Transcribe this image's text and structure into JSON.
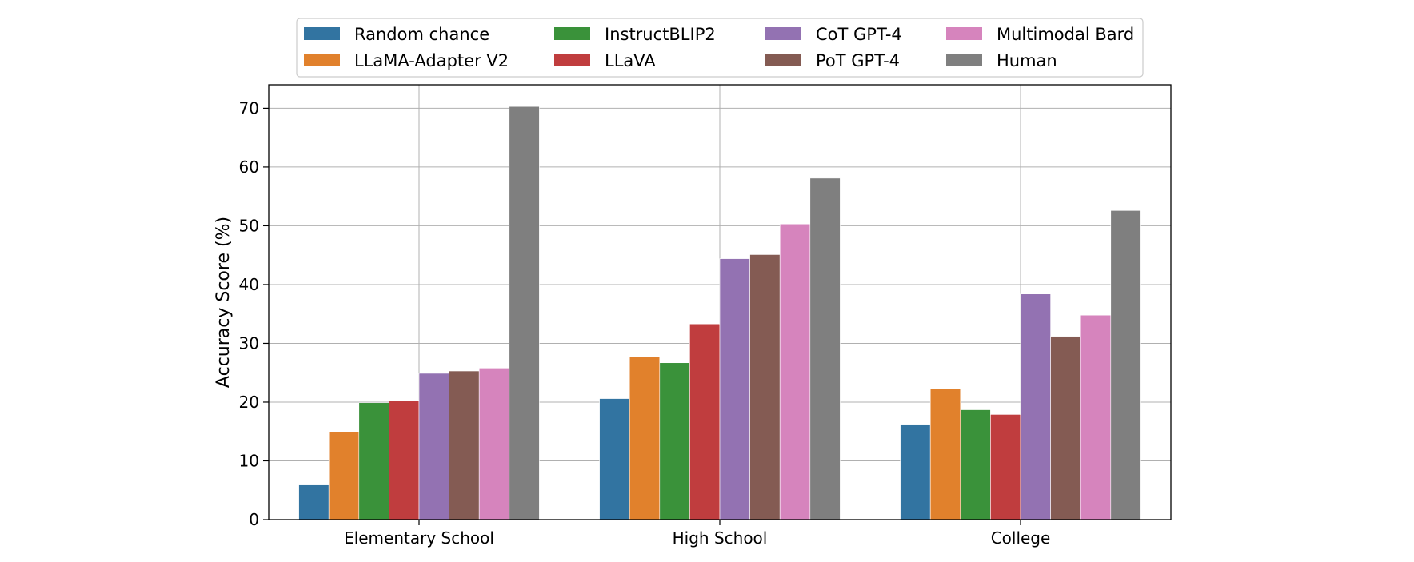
{
  "chart_data": {
    "type": "bar",
    "title": "",
    "xlabel": "",
    "ylabel": "Accuracy Score (%)",
    "ylim": [
      0,
      74
    ],
    "yticks": [
      0,
      10,
      20,
      30,
      40,
      50,
      60,
      70
    ],
    "grid": true,
    "legend_position": "top-center",
    "categories": [
      "Elementary School",
      "High School",
      "College"
    ],
    "series": [
      {
        "name": "Random chance",
        "color": "#3274a1",
        "values": [
          5.9,
          20.6,
          16.1
        ]
      },
      {
        "name": "LLaMA-Adapter V2",
        "color": "#e1812c",
        "values": [
          14.9,
          27.7,
          22.3
        ]
      },
      {
        "name": "InstructBLIP2",
        "color": "#3a923a",
        "values": [
          19.9,
          26.7,
          18.7
        ]
      },
      {
        "name": "LLaVA",
        "color": "#c03d3e",
        "values": [
          20.3,
          33.3,
          17.9
        ]
      },
      {
        "name": "CoT GPT-4",
        "color": "#9372b2",
        "values": [
          24.9,
          44.4,
          38.4
        ]
      },
      {
        "name": "PoT GPT-4",
        "color": "#845b53",
        "values": [
          25.3,
          45.1,
          31.2
        ]
      },
      {
        "name": "Multimodal Bard",
        "color": "#d684bd",
        "values": [
          25.8,
          50.3,
          34.8
        ]
      },
      {
        "name": "Human",
        "color": "#7f7f7f",
        "values": [
          70.3,
          58.1,
          52.6
        ]
      }
    ]
  }
}
